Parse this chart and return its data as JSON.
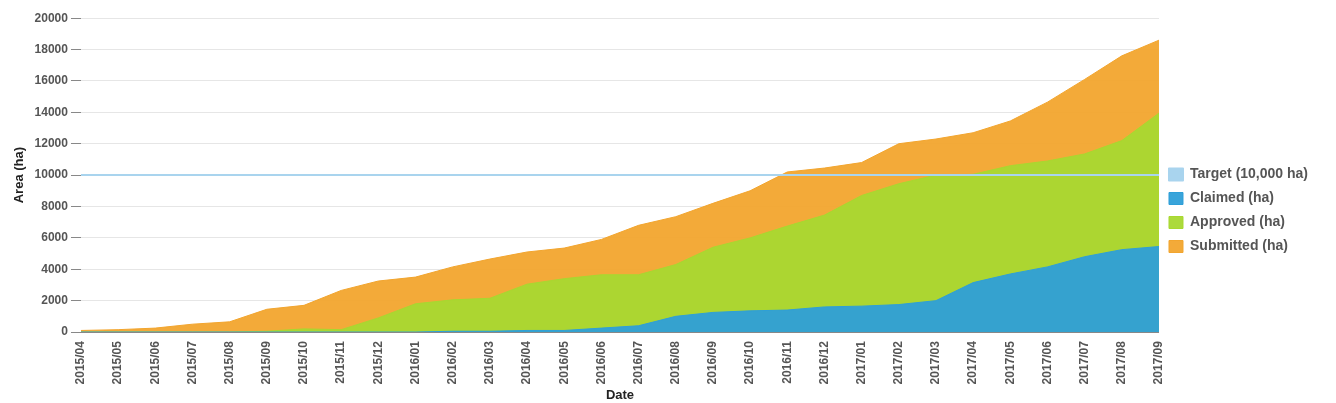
{
  "chart_data": {
    "type": "area",
    "xlabel": "Date",
    "ylabel": "Area (ha)",
    "categories": [
      "2015/04",
      "2015/05",
      "2015/06",
      "2015/07",
      "2015/08",
      "2015/09",
      "2015/10",
      "2015/11",
      "2015/12",
      "2016/01",
      "2016/02",
      "2016/03",
      "2016/04",
      "2016/05",
      "2016/06",
      "2016/07",
      "2016/08",
      "2016/09",
      "2016/10",
      "2016/11",
      "2016/12",
      "2017/01",
      "2017/02",
      "2017/03",
      "2017/04",
      "2017/05",
      "2017/06",
      "2017/07",
      "2017/08",
      "2017/09"
    ],
    "series": [
      {
        "name": "Claimed (ha)",
        "color": "#2e9fd8",
        "values": [
          0,
          0,
          0,
          0,
          0,
          0,
          0,
          0,
          0,
          0,
          50,
          50,
          100,
          100,
          250,
          400,
          1000,
          1250,
          1350,
          1400,
          1600,
          1650,
          1750,
          2000,
          3150,
          3700,
          4150,
          4800,
          5250,
          5450
        ]
      },
      {
        "name": "Approved (ha)",
        "color": "#a8d830",
        "values": [
          0,
          0,
          0,
          0,
          0,
          50,
          200,
          150,
          900,
          1800,
          2050,
          2150,
          3050,
          3400,
          3650,
          3650,
          4300,
          5400,
          6000,
          6750,
          7450,
          8700,
          9450,
          10000,
          10050,
          10600,
          10900,
          11350,
          12200,
          13950
        ]
      },
      {
        "name": "Submitted (ha)",
        "color": "#f2a52e",
        "values": [
          100,
          150,
          250,
          500,
          650,
          1450,
          1700,
          2650,
          3250,
          3500,
          4150,
          4650,
          5100,
          5350,
          5900,
          6800,
          7350,
          8200,
          9000,
          10200,
          10450,
          10800,
          12000,
          12300,
          12700,
          13450,
          14650,
          16100,
          17600,
          18600
        ]
      },
      {
        "name": "Target (10,000 ha)",
        "type": "line",
        "color": "#a9d4ee",
        "values": [
          10000,
          10000,
          10000,
          10000,
          10000,
          10000,
          10000,
          10000,
          10000,
          10000,
          10000,
          10000,
          10000,
          10000,
          10000,
          10000,
          10000,
          10000,
          10000,
          10000,
          10000,
          10000,
          10000,
          10000,
          10000,
          10000,
          10000,
          10000,
          10000,
          10000
        ]
      }
    ],
    "ylim": [
      0,
      20000
    ],
    "yticks": [
      0,
      2000,
      4000,
      6000,
      8000,
      10000,
      12000,
      14000,
      16000,
      18000,
      20000
    ],
    "grid": "y",
    "legend": "right",
    "marker": "none"
  }
}
